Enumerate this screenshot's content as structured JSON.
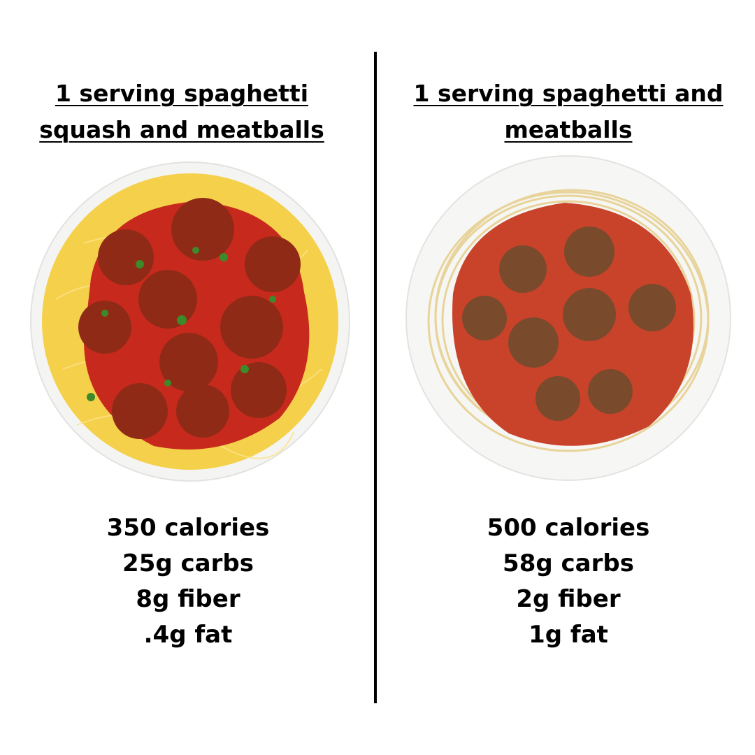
{
  "left": {
    "title_lines": [
      "1 serving spaghetti",
      "squash and meatballs"
    ],
    "stats": [
      "350 calories",
      "25g carbs",
      "8g fiber",
      ".4g fat"
    ]
  },
  "right": {
    "title_lines": [
      "1 serving spaghetti and",
      "meatballs"
    ],
    "stats": [
      "500 calories",
      "58g carbs",
      "2g fiber",
      "1g fat"
    ]
  }
}
